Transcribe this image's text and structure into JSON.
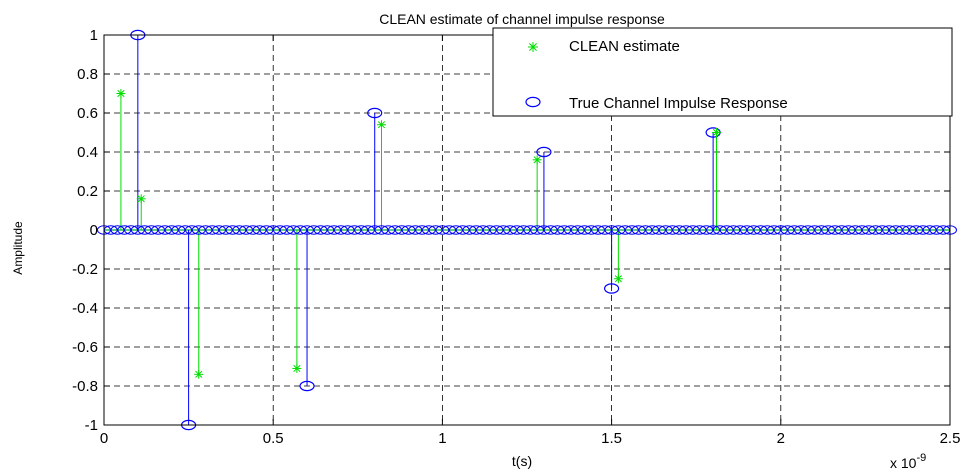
{
  "chart_data": {
    "type": "stem",
    "title": "CLEAN estimate of channel impulse response",
    "xlabel": "t(s)",
    "ylabel": "Amplitude",
    "x_exponent_label": "x 10",
    "x_exponent_power": "-9",
    "xlim": [
      0,
      2.5
    ],
    "ylim": [
      -1,
      1
    ],
    "x_scale": 1e-09,
    "xticks": [
      0,
      0.5,
      1,
      1.5,
      2,
      2.5
    ],
    "xtick_labels": [
      "0",
      "0.5",
      "1",
      "1.5",
      "2",
      "2.5"
    ],
    "yticks": [
      1,
      0.8,
      0.6,
      0.4,
      0.2,
      0,
      -0.2,
      -0.4,
      -0.6,
      -0.8,
      -1
    ],
    "ytick_labels": [
      "1",
      "0.8",
      "0.6",
      "0.4",
      "0.2",
      "0",
      "-0.2",
      "-0.4",
      "-0.6",
      "-0.8",
      "-1"
    ],
    "grid": true,
    "legend_position": "top-right",
    "baseline_samples": {
      "start": 0,
      "end": 2.5,
      "step": 0.02
    },
    "series": [
      {
        "name": "CLEAN estimate",
        "color": "#00dd00",
        "marker": "asterisk",
        "points": [
          {
            "x": 0.05,
            "y": 0.7
          },
          {
            "x": 0.11,
            "y": 0.16
          },
          {
            "x": 0.28,
            "y": -0.74
          },
          {
            "x": 0.57,
            "y": -0.71
          },
          {
            "x": 0.82,
            "y": 0.54
          },
          {
            "x": 1.28,
            "y": 0.36
          },
          {
            "x": 1.52,
            "y": -0.25
          },
          {
            "x": 1.81,
            "y": 0.5
          }
        ]
      },
      {
        "name": "True Channel Impulse Response",
        "color": "#0000ff",
        "marker": "circle",
        "points": [
          {
            "x": 0.1,
            "y": 1.0
          },
          {
            "x": 0.25,
            "y": -1.0
          },
          {
            "x": 0.6,
            "y": -0.8
          },
          {
            "x": 0.8,
            "y": 0.6
          },
          {
            "x": 1.3,
            "y": 0.4
          },
          {
            "x": 1.5,
            "y": -0.3
          },
          {
            "x": 1.8,
            "y": 0.5
          }
        ]
      }
    ]
  }
}
